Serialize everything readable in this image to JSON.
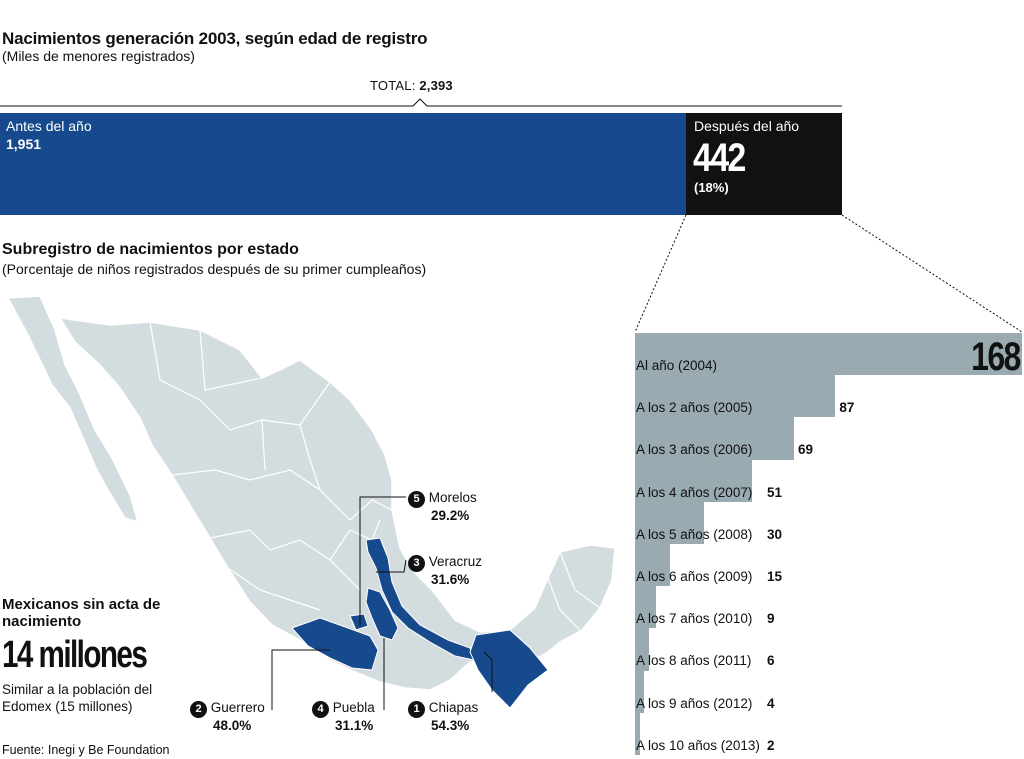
{
  "header": {
    "title": "Nacimientos generación 2003, según edad de registro",
    "subtitle": "(Miles de menores registrados)",
    "total_label": "TOTAL:",
    "total_value": "2,393"
  },
  "stack": {
    "before": {
      "label": "Antes del año",
      "value": 1951,
      "display": "1,951"
    },
    "after": {
      "label": "Después del año",
      "value": 442,
      "display": "442",
      "pct": "(18%)"
    }
  },
  "section2": {
    "title": "Subregistro de nacimientos por estado",
    "subtitle": "(Porcentaje de niños registrados después de su primer cumpleaños)"
  },
  "map_states": [
    {
      "rank": "1",
      "name": "Chiapas",
      "pct": "54.3%"
    },
    {
      "rank": "2",
      "name": "Guerrero",
      "pct": "48.0%"
    },
    {
      "rank": "3",
      "name": "Veracruz",
      "pct": "31.6%"
    },
    {
      "rank": "4",
      "name": "Puebla",
      "pct": "31.1%"
    },
    {
      "rank": "5",
      "name": "Morelos",
      "pct": "29.2%"
    }
  ],
  "undocumented": {
    "heading": "Mexicanos sin acta de nacimiento",
    "big": "14 millones",
    "note": "Similar a la población del Edomex (15 millones)"
  },
  "source": "Fuente: Inegi y Be Foundation",
  "colors": {
    "blue": "#174a8d",
    "black": "#111111",
    "gray_bar": "#9aaab1",
    "map_gray": "#d3dcdf"
  },
  "chart_data": [
    {
      "type": "bar",
      "title": "Nacimientos generación 2003, según edad de registro",
      "ylabel": "(Miles de menores registrados)",
      "categories": [
        "Antes del año",
        "Después del año"
      ],
      "values": [
        1951,
        442
      ],
      "total": 2393
    },
    {
      "type": "bar",
      "categories": [
        "Al año (2004)",
        "A los 2 años (2005)",
        "A los 3 años (2006)",
        "A los 4 años (2007)",
        "A los 5 años (2008)",
        "A los 6 años (2009)",
        "A los 7 años (2010)",
        "A los 8 años (2011)",
        "A los 9 años (2012)",
        "A los 10 años (2013)"
      ],
      "values": [
        168,
        87,
        69,
        51,
        30,
        15,
        9,
        6,
        4,
        2
      ]
    }
  ]
}
